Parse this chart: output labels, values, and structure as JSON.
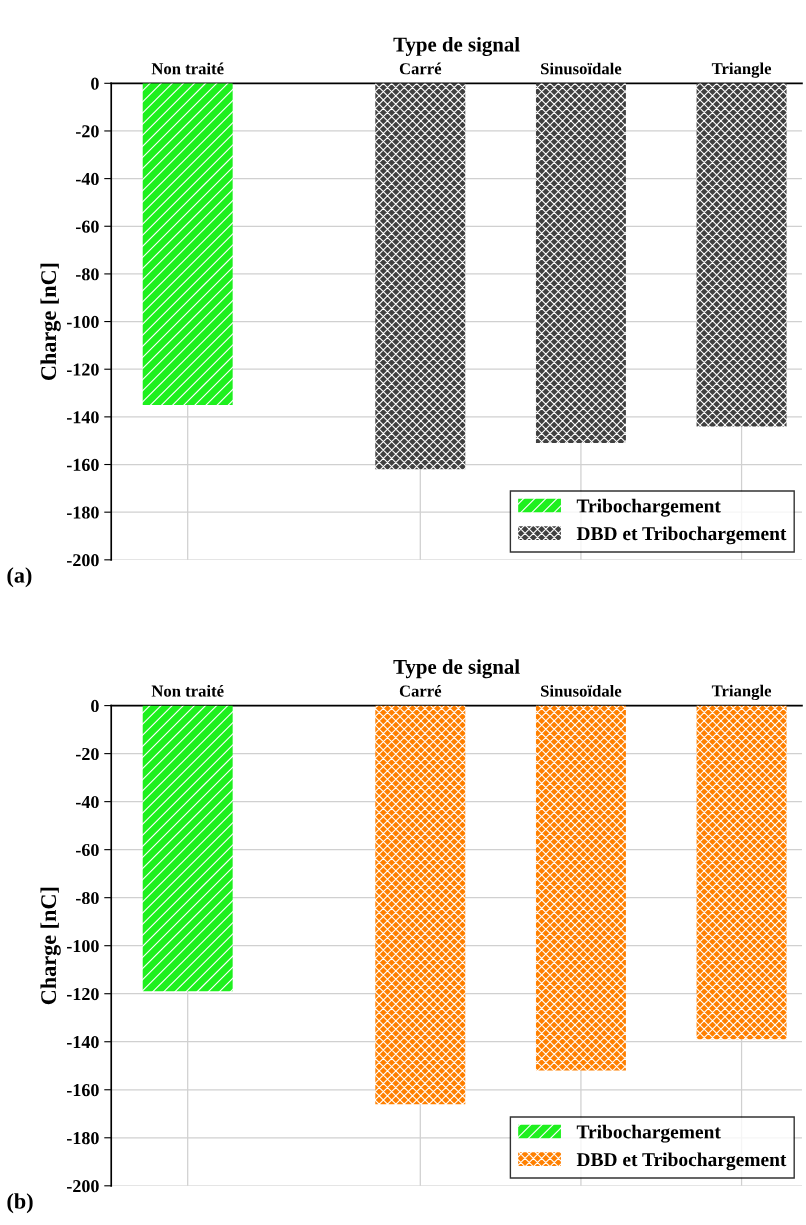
{
  "chart_data": [
    {
      "type": "bar",
      "xlabel": "Type de signal",
      "ylabel": "Charge [nC]",
      "categories": [
        "Non traité",
        "Carré",
        "Sinusoïdale",
        "Triangle"
      ],
      "series": [
        {
          "name": "Tribochargement",
          "color": "#1ef01e",
          "values": [
            -135,
            null,
            null,
            null
          ]
        },
        {
          "name": "DBD et Tribochargement",
          "color": "#404040",
          "values": [
            null,
            -162,
            -151,
            -144
          ]
        }
      ],
      "ylim": [
        -200,
        0
      ],
      "yticks": [
        -200,
        -180,
        -160,
        -140,
        -120,
        -100,
        -80,
        -60,
        -40,
        -20,
        0
      ],
      "grid": true,
      "legend": "bottom right",
      "annotations": [
        "(a)"
      ]
    },
    {
      "type": "bar",
      "xlabel": "Type de signal",
      "ylabel": "Charge [nC]",
      "categories": [
        "Non traité",
        "Carré",
        "Sinusoïdale",
        "Triangle"
      ],
      "series": [
        {
          "name": "Tribochargement",
          "color": "#1ef01e",
          "values": [
            -119,
            null,
            null,
            null
          ]
        },
        {
          "name": "DBD et Tribochargement",
          "color": "#ff8000",
          "values": [
            null,
            -166,
            -152,
            -139
          ]
        }
      ],
      "ylim": [
        -200,
        0
      ],
      "yticks": [
        -200,
        -180,
        -160,
        -140,
        -120,
        -100,
        -80,
        -60,
        -40,
        -20,
        0
      ],
      "grid": true,
      "legend": "bottom right",
      "annotations": [
        "(b)"
      ]
    }
  ]
}
